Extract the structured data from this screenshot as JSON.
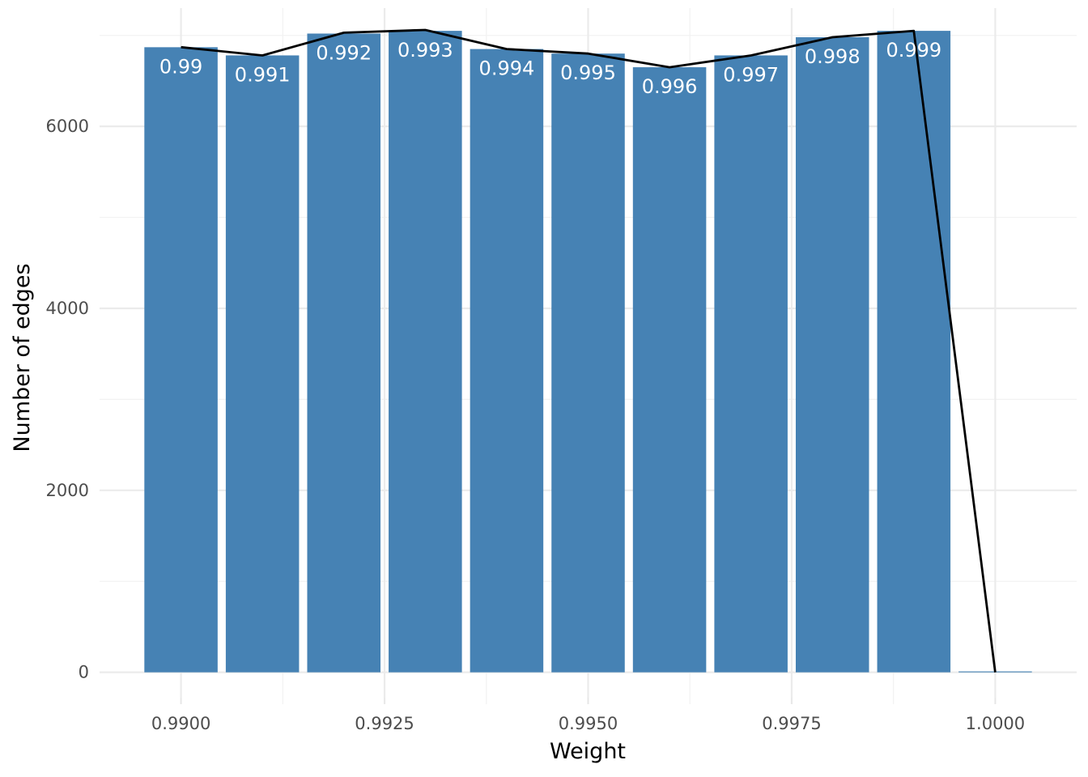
{
  "chart_data": {
    "type": "bar",
    "title": "",
    "xlabel": "Weight",
    "ylabel": "Number of edges",
    "x": [
      0.99,
      0.991,
      0.992,
      0.993,
      0.994,
      0.995,
      0.996,
      0.997,
      0.998,
      0.999,
      1.0
    ],
    "values": [
      6870,
      6780,
      7020,
      7050,
      6850,
      6800,
      6650,
      6780,
      6980,
      7050,
      10
    ],
    "bar_labels": [
      "0.99",
      "0.991",
      "0.992",
      "0.993",
      "0.994",
      "0.995",
      "0.996",
      "0.997",
      "0.998",
      "0.999",
      ""
    ],
    "line": {
      "x": [
        0.99,
        0.991,
        0.992,
        0.993,
        0.994,
        0.995,
        0.996,
        0.997,
        0.998,
        0.999,
        1.0
      ],
      "y": [
        6870,
        6780,
        7030,
        7060,
        6850,
        6800,
        6650,
        6780,
        6980,
        7050,
        0
      ],
      "color": "#000000"
    },
    "x_ticks": [
      0.99,
      0.9925,
      0.995,
      0.9975,
      1.0
    ],
    "x_tick_labels": [
      "0.9900",
      "0.9925",
      "0.9950",
      "0.9975",
      "1.0000"
    ],
    "y_ticks": [
      0,
      2000,
      4000,
      6000
    ],
    "y_tick_labels": [
      "0",
      "2000",
      "4000",
      "6000"
    ],
    "xlim": [
      0.989,
      1.001
    ],
    "ylim": [
      -350,
      7300
    ],
    "bar_color": "#4682b4",
    "grid": true,
    "legend": "none"
  }
}
